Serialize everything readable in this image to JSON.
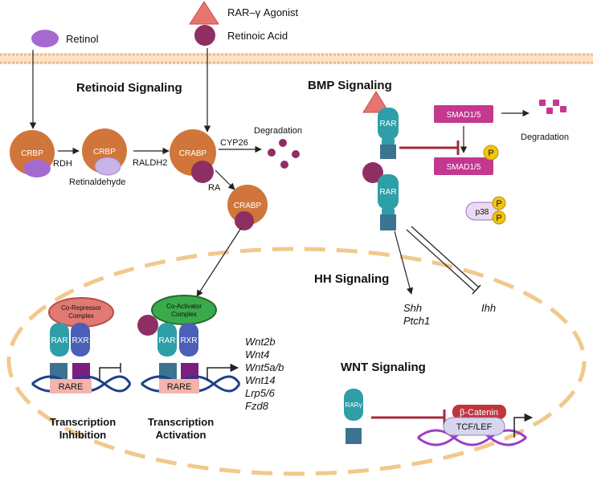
{
  "legend": {
    "retinol": "Retinol",
    "agonist": "RAR–γ Agonist",
    "retinoic_acid": "Retinoic Acid"
  },
  "sections": {
    "retinoid": "Retinoid Signaling",
    "bmp": "BMP Signaling",
    "hh": "HH Signaling",
    "wnt": "WNT Signaling"
  },
  "pathway": {
    "crbp": "CRBP",
    "rdh": "RDH",
    "retinaldehyde": "Retinaldehyde",
    "raldh2": "RALDH2",
    "crabp": "CRABP",
    "cyp26": "CYP26",
    "degradation": "Degradation",
    "ra": "RA"
  },
  "bmp": {
    "rar": "RAR",
    "smad_label": "SMAD1/5",
    "p": "P",
    "p38": "p38",
    "degradation": "Degradation"
  },
  "hh": {
    "shh": "Shh",
    "ptch1": "Ptch1",
    "ihh": "Ihh"
  },
  "nucleus": {
    "corepressor_line1": "Co-Repressor",
    "corepressor_line2": "Complex",
    "coactivator_line1": "Co-Activator",
    "coactivator_line2": "Complex",
    "rar": "RAR",
    "rxr": "RXR",
    "rare": "RARE",
    "inhibition_line1": "Transcription",
    "inhibition_line2": "Inhibition",
    "activation_line1": "Transcription",
    "activation_line2": "Activation",
    "target_genes": [
      "Wnt2b",
      "Wnt4",
      "Wnt5a/b",
      "Wnt14",
      "Lrp5/6",
      "Fzd8"
    ]
  },
  "wnt": {
    "rar_gamma": "RARγ",
    "beta_catenin": "β-Catenin",
    "tcf_lef": "TCF/LEF"
  },
  "colors": {
    "crbp": "#d1763a",
    "retinol": "#a56ad0",
    "retinoic_acid": "#8e2f63",
    "agonist": "#e8746f",
    "smad": "#c4388f",
    "phospho": "#f1c40f",
    "rar": "#2e9ea8",
    "rxr": "#4b5fb8",
    "membrane": "#f6cfa4",
    "nucleus": "#f2c88d",
    "inhibit": "#a52a3a",
    "corepressor": "#e07a72",
    "coactivator": "#3aaa4b"
  }
}
